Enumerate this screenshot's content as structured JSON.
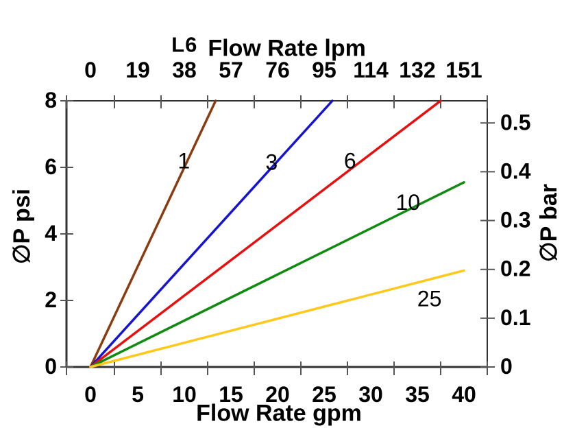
{
  "chart_data": {
    "type": "line",
    "model_label": "L6",
    "top_axis": {
      "title": "Flow Rate lpm",
      "ticks": [
        "0",
        "19",
        "38",
        "57",
        "76",
        "95",
        "114",
        "132",
        "151"
      ],
      "range_lpm": [
        0,
        151
      ]
    },
    "bottom_axis": {
      "title": "Flow Rate gpm",
      "ticks": [
        "0",
        "5",
        "10",
        "15",
        "20",
        "25",
        "30",
        "35",
        "40"
      ],
      "range_gpm": [
        0,
        40
      ]
    },
    "left_axis": {
      "title": "∅P psi",
      "ticks": [
        "0",
        "2",
        "4",
        "6",
        "8"
      ],
      "range_psi": [
        0,
        8
      ]
    },
    "right_axis": {
      "title": "∅P bar",
      "ticks": [
        "0",
        "0.1",
        "0.2",
        "0.3",
        "0.4",
        "0.5"
      ],
      "psi_per_bar": 14.67
    },
    "grid": "off",
    "legend": "inline-labels-on-curves",
    "series": [
      {
        "label": "1",
        "color": "#8a3c10",
        "points_gpm_psi": [
          [
            0,
            0
          ],
          [
            13.4,
            8
          ]
        ],
        "label_at_gpm_psi": [
          10.0,
          6.2
        ]
      },
      {
        "label": "3",
        "color": "#1414d2",
        "points_gpm_psi": [
          [
            0,
            0
          ],
          [
            25.9,
            8
          ]
        ],
        "label_at_gpm_psi": [
          19.4,
          6.15
        ]
      },
      {
        "label": "6",
        "color": "#e8100e",
        "points_gpm_psi": [
          [
            0,
            0
          ],
          [
            37.5,
            8
          ]
        ],
        "label_at_gpm_psi": [
          27.8,
          6.2
        ]
      },
      {
        "label": "10",
        "color": "#0f8b0f",
        "points_gpm_psi": [
          [
            0,
            0
          ],
          [
            40,
            5.55
          ]
        ],
        "label_at_gpm_psi": [
          34.0,
          4.95
        ]
      },
      {
        "label": "25",
        "color": "#ffc81a",
        "points_gpm_psi": [
          [
            0,
            0
          ],
          [
            40,
            2.9
          ]
        ],
        "label_at_gpm_psi": [
          36.3,
          2.05
        ]
      }
    ],
    "colors": {
      "axis": "#333333",
      "tick": "#565656",
      "text": "#000000",
      "background": "#ffffff"
    }
  }
}
